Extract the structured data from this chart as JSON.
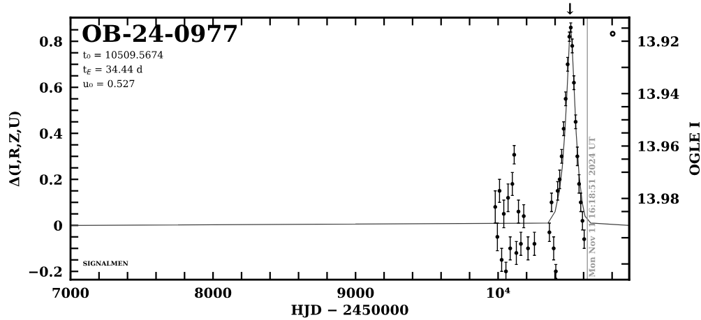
{
  "chart_data": {
    "type": "scatter",
    "title": "OB-24-0977",
    "xlabel": "HJD − 2450000",
    "ylabel": "Δ(I,R,Z,U)",
    "y2label": "OGLE I",
    "xlim": [
      7000,
      10920
    ],
    "ylim": [
      -0.236,
      0.903
    ],
    "y2lim": [
      14.011,
      13.911
    ],
    "xticks": [
      7000,
      {
        "value": 7200,
        "label": null
      },
      {
        "value": 7400,
        "label": null
      },
      {
        "value": 7600,
        "label": null
      },
      {
        "value": 7800,
        "label": null
      },
      8000,
      {
        "value": 8200,
        "label": null
      },
      {
        "value": 8400,
        "label": null
      },
      {
        "value": 8600,
        "label": null
      },
      {
        "value": 8800,
        "label": null
      },
      9000,
      {
        "value": 9200,
        "label": null
      },
      {
        "value": 9400,
        "label": null
      },
      {
        "value": 9600,
        "label": null
      },
      {
        "value": 9800,
        "label": null
      },
      {
        "value": 10000,
        "label": "10⁴"
      },
      {
        "value": 10200,
        "label": null
      },
      {
        "value": 10400,
        "label": null
      },
      {
        "value": 10600,
        "label": null
      },
      {
        "value": 10800,
        "label": null
      }
    ],
    "yticks": [
      {
        "value": -0.2,
        "label": "−0.2"
      },
      {
        "value": -0.15,
        "label": null
      },
      {
        "value": -0.1,
        "label": null
      },
      {
        "value": -0.05,
        "label": null
      },
      0,
      {
        "value": 0.05,
        "label": null
      },
      {
        "value": 0.1,
        "label": null
      },
      {
        "value": 0.15,
        "label": null
      },
      0.2,
      {
        "value": 0.25,
        "label": null
      },
      {
        "value": 0.3,
        "label": null
      },
      {
        "value": 0.35,
        "label": null
      },
      0.4,
      {
        "value": 0.45,
        "label": null
      },
      {
        "value": 0.5,
        "label": null
      },
      {
        "value": 0.55,
        "label": null
      },
      0.6,
      {
        "value": 0.65,
        "label": null
      },
      {
        "value": 0.7,
        "label": null
      },
      {
        "value": 0.75,
        "label": null
      },
      0.8,
      {
        "value": 0.85,
        "label": null
      }
    ],
    "y2ticks": [
      {
        "value": 13.915,
        "label": null
      },
      13.92,
      {
        "value": 13.93,
        "label": null
      },
      13.94,
      {
        "value": 13.945,
        "label": null
      },
      {
        "value": 13.95,
        "label": null
      },
      {
        "value": 13.955,
        "label": null
      },
      13.96,
      {
        "value": 13.965,
        "label": null
      },
      {
        "value": 13.97,
        "label": null
      },
      13.98,
      {
        "value": 13.985,
        "label": null
      },
      {
        "value": 13.995,
        "label": null
      },
      {
        "value": 14.005,
        "label": null
      }
    ],
    "grid": false,
    "series": [
      {
        "type": "line",
        "color": "#404040",
        "x": [
          7000,
          10350,
          10400,
          10430,
          10450,
          10470,
          10485,
          10500,
          10509,
          10518,
          10533,
          10548,
          10568,
          10590,
          10610,
          10650,
          10920
        ],
        "values": [
          0,
          0.01,
          0.06,
          0.15,
          0.25,
          0.42,
          0.6,
          0.8,
          0.86,
          0.8,
          0.6,
          0.4,
          0.22,
          0.1,
          0.04,
          0.01,
          0
        ]
      },
      {
        "color": "#000000",
        "marker": "circle",
        "x": [
          9980,
          9995,
          10010,
          10025,
          10040,
          10055,
          10070,
          10085,
          10100,
          10113,
          10128,
          10143,
          10160,
          10180,
          10210,
          10255,
          10360,
          10375,
          10390,
          10405,
          10418,
          10432,
          10446,
          10460,
          10474,
          10488,
          10500,
          10510,
          10520,
          10532,
          10544,
          10556,
          10568,
          10580,
          10592,
          10604
        ],
        "values": [
          0.08,
          -0.05,
          0.15,
          -0.15,
          0.05,
          -0.2,
          0.12,
          -0.1,
          0.18,
          0.307,
          -0.12,
          0.06,
          -0.08,
          0.04,
          -0.1,
          -0.08,
          -0.03,
          0.1,
          -0.1,
          -0.2,
          0.15,
          0.2,
          0.3,
          0.42,
          0.55,
          0.7,
          0.82,
          0.86,
          0.78,
          0.62,
          0.45,
          0.3,
          0.18,
          0.1,
          0.02,
          -0.06
        ],
        "errors": [
          0.07,
          0.06,
          0.05,
          0.05,
          0.06,
          0.04,
          0.06,
          0.05,
          0.05,
          0.04,
          0.05,
          0.05,
          0.05,
          0.05,
          0.05,
          0.05,
          0.04,
          0.04,
          0.05,
          0.03,
          0.04,
          0.04,
          0.03,
          0.03,
          0.03,
          0.03,
          0.02,
          0.02,
          0.03,
          0.03,
          0.03,
          0.04,
          0.04,
          0.04,
          0.04,
          0.04
        ]
      },
      {
        "color": "#000000",
        "marker": "circle",
        "x": [
          10804
        ],
        "values": [
          0.833
        ]
      }
    ],
    "ref_lines": [
      {
        "axis": "x",
        "value": 10626.18,
        "color": "#999999"
      }
    ],
    "annotations": [
      "t₀ = 10509.5674",
      "t$_{E}$ = 34.44 d",
      "u₀ = 0.527",
      "SIGNALMEN",
      "↓",
      "Mon Nov 11 16:18:51 2024 UT"
    ]
  }
}
